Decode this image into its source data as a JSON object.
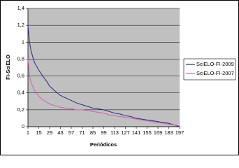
{
  "chart_data": {
    "type": "line",
    "x_label": "Periódicos",
    "y_label": "FI-SciELO",
    "x": [
      1,
      3,
      5,
      8,
      10,
      15,
      20,
      25,
      29,
      35,
      43,
      50,
      57,
      64,
      71,
      78,
      85,
      92,
      99,
      106,
      113,
      120,
      127,
      134,
      141,
      148,
      155,
      162,
      169,
      176,
      183,
      190,
      197
    ],
    "series": [
      {
        "name": "SciELO-FI-2009",
        "color": "#2a2a80",
        "values": [
          1.2,
          1.0,
          0.9,
          0.8,
          0.75,
          0.67,
          0.6,
          0.54,
          0.48,
          0.43,
          0.37,
          0.34,
          0.31,
          0.28,
          0.26,
          0.24,
          0.22,
          0.21,
          0.2,
          0.18,
          0.16,
          0.15,
          0.13,
          0.12,
          0.1,
          0.09,
          0.08,
          0.07,
          0.06,
          0.05,
          0.04,
          0.02,
          0
        ]
      },
      {
        "name": "SciELO-FI-2007",
        "color": "#d060b0",
        "values": [
          0.8,
          0.6,
          0.52,
          0.46,
          0.42,
          0.36,
          0.32,
          0.29,
          0.27,
          0.25,
          0.23,
          0.22,
          0.21,
          0.2,
          0.2,
          0.19,
          0.18,
          0.17,
          0.16,
          0.14,
          0.13,
          0.12,
          0.11,
          0.1,
          0.09,
          0.08,
          0.07,
          0.06,
          0.05,
          0.04,
          0.03,
          0.02,
          0.01
        ]
      }
    ],
    "xlim": [
      1,
      197
    ],
    "xticks": [
      1,
      15,
      29,
      43,
      57,
      71,
      85,
      99,
      113,
      127,
      141,
      155,
      169,
      183,
      197
    ],
    "ylim": [
      0,
      1.4
    ],
    "yticks": [
      0,
      {
        "value": 0.2,
        "label": "0,2"
      },
      {
        "value": 0.4,
        "label": "0,4"
      },
      {
        "value": 0.6,
        "label": "0,6"
      },
      {
        "value": 0.8,
        "label": "0,8"
      },
      1,
      {
        "value": 1.2,
        "label": "1,2"
      },
      {
        "value": 1.4,
        "label": "1,4"
      }
    ],
    "grid": true,
    "legend": "right"
  }
}
